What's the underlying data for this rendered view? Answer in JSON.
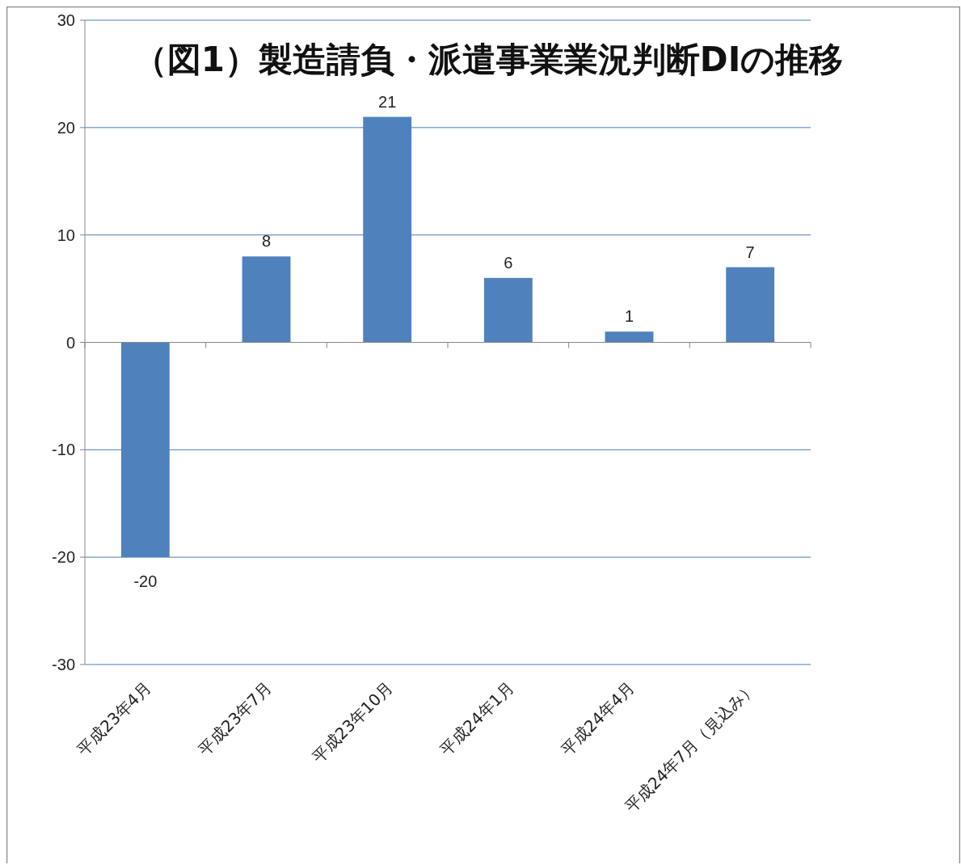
{
  "chart_data": {
    "type": "bar",
    "title": "（図1）製造請負・派遣事業業況判断DIの推移",
    "categories": [
      "平成23年4月",
      "平成23年7月",
      "平成23年10月",
      "平成24年1月",
      "平成24年4月",
      "平成24年7月（見込み）"
    ],
    "values": [
      -20,
      8,
      21,
      6,
      1,
      7
    ],
    "color": "#4f81bd",
    "ylim": [
      -30,
      30
    ],
    "yticks": [
      -30,
      -20,
      -10,
      0,
      10,
      20,
      30
    ],
    "grid": "y",
    "data_labels": true
  }
}
